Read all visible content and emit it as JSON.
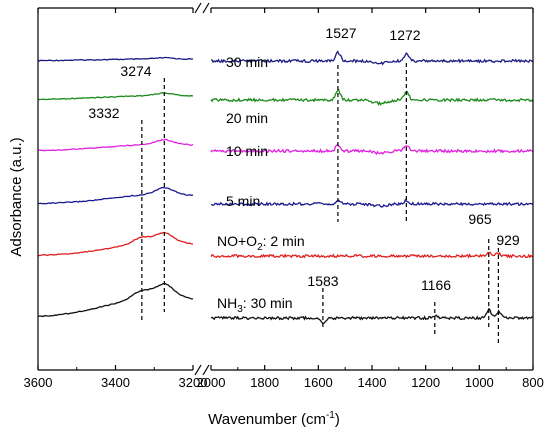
{
  "chart_data": {
    "type": "line",
    "title": "",
    "xlabel": "Wavenumber (cm-1)",
    "xlabel_parts": [
      "Wavenumber (cm",
      "-1",
      ")"
    ],
    "ylabel": "Adsorbance (a.u.)",
    "x_axis": "reversed, broken between 3200 and 2000",
    "xlim_left": [
      3600,
      3200
    ],
    "xlim_right": [
      2000,
      800
    ],
    "x_ticks": [
      3600,
      3400,
      3200,
      2000,
      1800,
      1600,
      1400,
      1200,
      1000,
      800
    ],
    "x_tick_labels": [
      "3600",
      "3400",
      "3200",
      "2000",
      "1800",
      "1600",
      "1400",
      "1200",
      "1000",
      "800"
    ],
    "y_ticks": "none",
    "grid": false,
    "series": [
      {
        "name": "30 min",
        "color": "#1a1a80",
        "peaks": [
          {
            "x": 3274,
            "h": 0.4
          },
          {
            "x": 1527,
            "h": 2.2
          },
          {
            "x": 1272,
            "h": 1.8
          }
        ]
      },
      {
        "name": "20 min",
        "color": "#1a8a1a",
        "peaks": [
          {
            "x": 3274,
            "h": 0.8
          },
          {
            "x": 1527,
            "h": 2.4
          },
          {
            "x": 1272,
            "h": 2.0
          }
        ]
      },
      {
        "name": "10 min",
        "color": "#e020e0",
        "peaks": [
          {
            "x": 3274,
            "h": 1.4
          },
          {
            "x": 1527,
            "h": 1.4
          },
          {
            "x": 1272,
            "h": 1.4
          }
        ]
      },
      {
        "name": "5 min",
        "color": "#1a1a90",
        "peaks": [
          {
            "x": 3274,
            "h": 2.1
          },
          {
            "x": 1527,
            "h": 0.8
          },
          {
            "x": 1272,
            "h": 0.8
          }
        ]
      },
      {
        "name_parts": [
          "NO+O",
          "2",
          ": 2 min"
        ],
        "color": "#e02020",
        "peaks": [
          {
            "x": 3332,
            "h": 2.0
          },
          {
            "x": 3274,
            "h": 3.0
          },
          {
            "x": 965,
            "h": 0.9
          },
          {
            "x": 929,
            "h": 0.6
          }
        ]
      },
      {
        "name_parts": [
          "NH",
          "3",
          ": 30 min"
        ],
        "color": "#111111",
        "peaks": [
          {
            "x": 3332,
            "h": 2.4
          },
          {
            "x": 3274,
            "h": 4.0
          },
          {
            "x": 1583,
            "h": -1.5
          },
          {
            "x": 1166,
            "h": 0.5
          },
          {
            "x": 965,
            "h": 2.1
          },
          {
            "x": 929,
            "h": 1.6
          }
        ]
      }
    ],
    "annotations": [
      {
        "label": "3274",
        "x": 3274
      },
      {
        "label": "3332",
        "x": 3332
      },
      {
        "label": "1527",
        "x": 1527
      },
      {
        "label": "1272",
        "x": 1272
      },
      {
        "label": "965",
        "x": 965
      },
      {
        "label": "929",
        "x": 929
      },
      {
        "label": "1583",
        "x": 1583
      },
      {
        "label": "1166",
        "x": 1166
      }
    ]
  }
}
